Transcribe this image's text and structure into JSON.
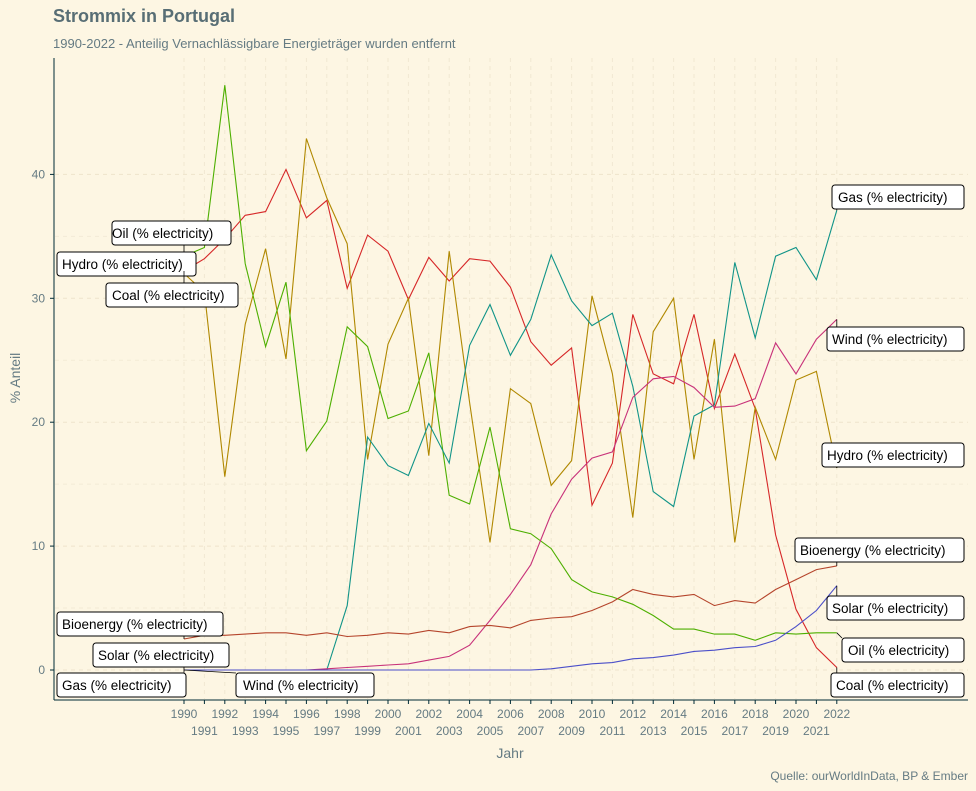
{
  "chart_data": {
    "type": "line",
    "title": "Strommix in Portugal",
    "subtitle": "1990-2022 - Anteilig Vernachlässigbare Energieträger wurden entfernt",
    "xlabel": "Jahr",
    "ylabel": "% Anteil",
    "caption": "Quelle: ourWorldInData, BP & Ember",
    "xlim": [
      1990,
      2022
    ],
    "ylim": [
      0,
      40
    ],
    "y_ticks": [
      0,
      10,
      20,
      30,
      40
    ],
    "x_ticks": [
      1990,
      1991,
      1992,
      1993,
      1994,
      1995,
      1996,
      1997,
      1998,
      1999,
      2000,
      2001,
      2002,
      2003,
      2004,
      2005,
      2006,
      2007,
      2008,
      2009,
      2010,
      2011,
      2012,
      2013,
      2014,
      2015,
      2016,
      2017,
      2018,
      2019,
      2020,
      2021,
      2022
    ],
    "grid": true,
    "x": [
      1990,
      1991,
      1992,
      1993,
      1994,
      1995,
      1996,
      1997,
      1998,
      1999,
      2000,
      2001,
      2002,
      2003,
      2004,
      2005,
      2006,
      2007,
      2008,
      2009,
      2010,
      2011,
      2012,
      2013,
      2014,
      2015,
      2016,
      2017,
      2018,
      2019,
      2020,
      2021,
      2022
    ],
    "series": [
      {
        "name": "Coal (% electricity)",
        "color": "#d62728",
        "values": [
          32.2,
          33.2,
          34.8,
          36.7,
          37.0,
          40.4,
          36.5,
          37.9,
          30.8,
          35.1,
          33.8,
          29.9,
          33.3,
          31.4,
          33.2,
          33.0,
          30.9,
          26.5,
          24.6,
          26.0,
          13.3,
          16.7,
          28.7,
          23.9,
          23.1,
          28.7,
          21.1,
          25.5,
          21.1,
          10.9,
          4.9,
          1.8,
          0.2
        ]
      },
      {
        "name": "Hydro (% electricity)",
        "color": "#b08800",
        "values": [
          32.0,
          30.5,
          15.6,
          27.9,
          34.0,
          25.1,
          42.9,
          38.1,
          34.4,
          17.0,
          26.3,
          30.0,
          17.3,
          33.8,
          21.6,
          10.3,
          22.7,
          21.5,
          14.9,
          16.9,
          30.2,
          23.9,
          12.3,
          27.3,
          30.0,
          17.0,
          26.7,
          10.3,
          21.2,
          17.0,
          23.4,
          24.1,
          16.3
        ]
      },
      {
        "name": "Oil (% electricity)",
        "color": "#4daf00",
        "values": [
          33.4,
          34.1,
          47.2,
          32.8,
          26.1,
          31.3,
          17.7,
          20.1,
          27.7,
          26.1,
          20.3,
          20.9,
          25.6,
          14.1,
          13.4,
          19.6,
          11.4,
          11.0,
          9.8,
          7.3,
          6.3,
          5.9,
          5.3,
          4.4,
          3.3,
          3.3,
          2.9,
          2.9,
          2.4,
          3.0,
          2.9,
          3.0,
          3.0
        ]
      },
      {
        "name": "Gas (% electricity)",
        "color": "#119488",
        "values": [
          0,
          0,
          0,
          0,
          0,
          0,
          0,
          0,
          5.2,
          18.8,
          16.5,
          15.7,
          19.9,
          16.7,
          26.2,
          29.5,
          25.4,
          28.3,
          33.5,
          29.8,
          27.8,
          28.8,
          22.9,
          14.4,
          13.2,
          20.5,
          21.4,
          32.9,
          26.8,
          33.4,
          34.1,
          31.5,
          37.1
        ]
      },
      {
        "name": "Wind (% electricity)",
        "color": "#c8327a",
        "values": [
          0.0,
          0.0,
          0.0,
          0.0,
          0.0,
          0.0,
          0.0,
          0.1,
          0.2,
          0.3,
          0.4,
          0.5,
          0.8,
          1.1,
          2.0,
          4.0,
          6.1,
          8.5,
          12.6,
          15.4,
          17.1,
          17.6,
          22.0,
          23.5,
          23.7,
          22.8,
          21.2,
          21.3,
          21.9,
          26.4,
          23.9,
          26.7,
          28.3
        ]
      },
      {
        "name": "Bioenergy (% electricity)",
        "color": "#b5452c",
        "values": [
          2.5,
          2.8,
          2.8,
          2.9,
          3.0,
          3.0,
          2.8,
          3.0,
          2.7,
          2.8,
          3.0,
          2.9,
          3.2,
          3.0,
          3.5,
          3.6,
          3.4,
          4.0,
          4.2,
          4.3,
          4.8,
          5.5,
          6.5,
          6.1,
          5.9,
          6.1,
          5.2,
          5.6,
          5.4,
          6.5,
          7.3,
          8.1,
          8.4
        ]
      },
      {
        "name": "Solar (% electricity)",
        "color": "#4b4fc9",
        "values": [
          0,
          0,
          0,
          0,
          0,
          0,
          0,
          0,
          0,
          0,
          0,
          0,
          0,
          0,
          0,
          0,
          0,
          0,
          0.1,
          0.3,
          0.5,
          0.6,
          0.9,
          1.0,
          1.2,
          1.5,
          1.6,
          1.8,
          1.9,
          2.4,
          3.5,
          4.8,
          6.8
        ]
      }
    ],
    "labels_left": [
      "Oil (% electricity)",
      "Hydro (% electricity)",
      "Coal (% electricity)",
      "Bioenergy (% electricity)",
      "Solar (% electricity)",
      "Gas (% electricity)",
      "Wind (% electricity)"
    ],
    "labels_right": [
      "Gas (% electricity)",
      "Wind (% electricity)",
      "Hydro (% electricity)",
      "Bioenergy (% electricity)",
      "Solar (% electricity)",
      "Oil (% electricity)",
      "Coal (% electricity)"
    ]
  }
}
